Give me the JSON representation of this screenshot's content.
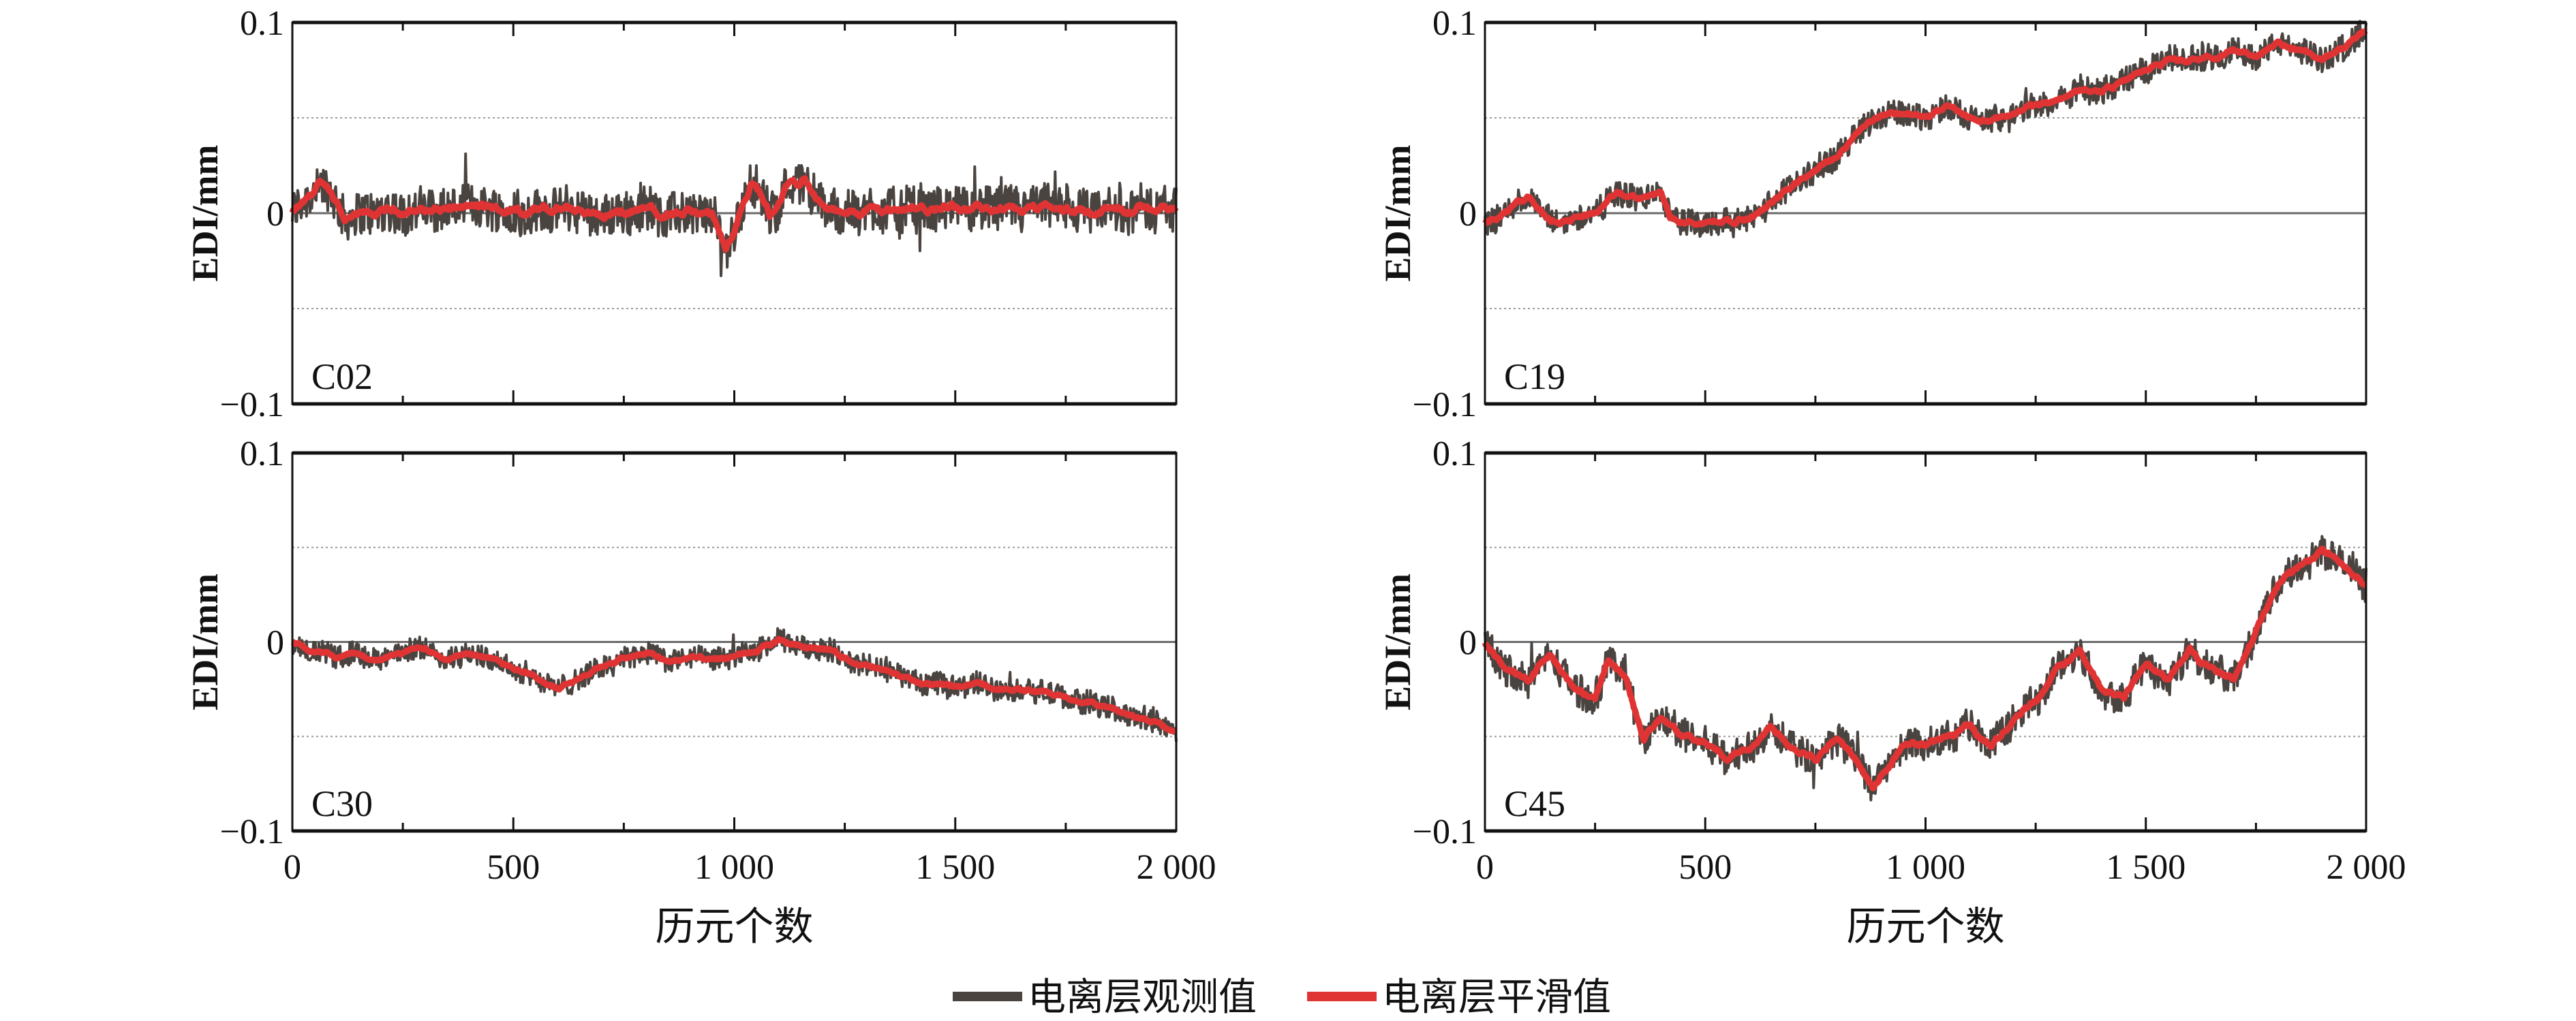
{
  "colors": {
    "observed": "#4a4440",
    "smoothed": "#e03434",
    "axis": "#111111",
    "grid": "#9a9a9a"
  },
  "legend": {
    "items": [
      {
        "label": "电离层观测值",
        "color": "#4a4440"
      },
      {
        "label": "电离层平滑值",
        "color": "#e03434"
      }
    ],
    "placement": "bottom-center"
  },
  "chart_data": [
    {
      "type": "line",
      "panel": "C02",
      "ylabel": "EDI/mm",
      "xlabel": "",
      "xlim": [
        0,
        2000
      ],
      "ylim": [
        -0.1,
        0.1
      ],
      "xticks": [
        "",
        "",
        "",
        "",
        ""
      ],
      "yticks": [
        "0.1",
        "0",
        "−0.1"
      ],
      "noise": 0.012,
      "series": [
        {
          "name": "电离层平滑值",
          "x": [
            0,
            30,
            60,
            80,
            120,
            200,
            300,
            400,
            500,
            600,
            700,
            800,
            900,
            950,
            980,
            1000,
            1040,
            1080,
            1120,
            1160,
            1200,
            1250,
            1300,
            1400,
            1500,
            1600,
            1700,
            1800,
            1900,
            2000
          ],
          "y": [
            0,
            0.005,
            0.014,
            0.01,
            -0.004,
            0.0,
            0.002,
            0.003,
            0.001,
            0.002,
            0.0,
            0.002,
            0.0,
            -0.003,
            -0.02,
            -0.01,
            0.018,
            -0.002,
            0.015,
            0.018,
            0.003,
            -0.002,
            0.002,
            0.001,
            0.003,
            0.0,
            0.002,
            0.001,
            0.002,
            0.003
          ]
        }
      ]
    },
    {
      "type": "line",
      "panel": "C19",
      "ylabel": "EDI/mm",
      "xlabel": "",
      "xlim": [
        0,
        2000
      ],
      "ylim": [
        -0.1,
        0.1
      ],
      "xticks": [
        "",
        "",
        "",
        "",
        ""
      ],
      "yticks": [
        "0.1",
        "0",
        "−0.1"
      ],
      "noise": 0.007,
      "series": [
        {
          "name": "电离层平滑值",
          "x": [
            0,
            40,
            100,
            150,
            200,
            250,
            300,
            350,
            400,
            420,
            450,
            500,
            550,
            600,
            650,
            700,
            750,
            800,
            850,
            900,
            950,
            1000,
            1050,
            1100,
            1150,
            1200,
            1300,
            1350,
            1400,
            1500,
            1550,
            1600,
            1700,
            1750,
            1800,
            1850,
            1900,
            1950,
            2000
          ],
          "y": [
            -0.005,
            0.0,
            0.008,
            -0.004,
            -0.003,
            0.0,
            0.01,
            0.008,
            0.01,
            -0.003,
            -0.003,
            -0.005,
            -0.003,
            -0.003,
            0.005,
            0.015,
            0.022,
            0.03,
            0.045,
            0.052,
            0.053,
            0.05,
            0.055,
            0.05,
            0.048,
            0.052,
            0.06,
            0.065,
            0.064,
            0.075,
            0.08,
            0.08,
            0.085,
            0.083,
            0.088,
            0.085,
            0.08,
            0.088,
            0.095
          ]
        }
      ]
    },
    {
      "type": "line",
      "panel": "C30",
      "ylabel": "EDI/mm",
      "xlabel": "历元个数",
      "xlim": [
        0,
        2000
      ],
      "ylim": [
        -0.1,
        0.1
      ],
      "xticks": [
        "0",
        "500",
        "1 000",
        "1 500",
        "2 000"
      ],
      "yticks": [
        "0.1",
        "0",
        "−0.1"
      ],
      "noise": 0.006,
      "series": [
        {
          "name": "电离层平滑值",
          "x": [
            0,
            50,
            100,
            150,
            200,
            250,
            300,
            350,
            400,
            450,
            500,
            550,
            600,
            650,
            700,
            750,
            800,
            850,
            900,
            950,
            1000,
            1050,
            1100,
            1150,
            1200,
            1250,
            1300,
            1350,
            1400,
            1450,
            1500,
            1550,
            1600,
            1650,
            1700,
            1750,
            1800,
            1850,
            1900,
            1950,
            2000
          ],
          "y": [
            0,
            -0.005,
            -0.008,
            -0.006,
            -0.01,
            -0.006,
            -0.003,
            -0.008,
            -0.005,
            -0.01,
            -0.013,
            -0.018,
            -0.025,
            -0.02,
            -0.013,
            -0.008,
            -0.005,
            -0.01,
            -0.008,
            -0.01,
            -0.008,
            -0.005,
            0.0,
            -0.002,
            -0.003,
            -0.008,
            -0.013,
            -0.016,
            -0.02,
            -0.023,
            -0.024,
            -0.022,
            -0.025,
            -0.025,
            -0.027,
            -0.03,
            -0.033,
            -0.035,
            -0.04,
            -0.042,
            -0.048
          ]
        }
      ]
    },
    {
      "type": "line",
      "panel": "C45",
      "ylabel": "EDI/mm",
      "xlabel": "历元个数",
      "xlim": [
        0,
        2000
      ],
      "ylim": [
        -0.1,
        0.1
      ],
      "xticks": [
        "0",
        "500",
        "1 000",
        "1 500",
        "2 000"
      ],
      "yticks": [
        "0.1",
        "0",
        "−0.1"
      ],
      "noise": 0.009,
      "series": [
        {
          "name": "电离层平滑值",
          "x": [
            0,
            50,
            100,
            150,
            200,
            250,
            280,
            320,
            360,
            400,
            450,
            500,
            550,
            600,
            650,
            700,
            750,
            800,
            850,
            880,
            900,
            950,
            1000,
            1050,
            1100,
            1150,
            1200,
            1250,
            1300,
            1350,
            1400,
            1450,
            1500,
            1550,
            1600,
            1650,
            1700,
            1750,
            1800,
            1850,
            1900,
            1950,
            2000
          ],
          "y": [
            0,
            -0.015,
            -0.02,
            -0.008,
            -0.025,
            -0.03,
            -0.01,
            -0.02,
            -0.05,
            -0.04,
            -0.05,
            -0.055,
            -0.06,
            -0.055,
            -0.045,
            -0.055,
            -0.06,
            -0.05,
            -0.065,
            -0.078,
            -0.07,
            -0.055,
            -0.055,
            -0.05,
            -0.045,
            -0.055,
            -0.04,
            -0.03,
            -0.015,
            -0.005,
            -0.025,
            -0.03,
            -0.01,
            -0.02,
            -0.005,
            -0.015,
            -0.02,
            0.005,
            0.03,
            0.04,
            0.05,
            0.04,
            0.03
          ]
        }
      ]
    }
  ]
}
